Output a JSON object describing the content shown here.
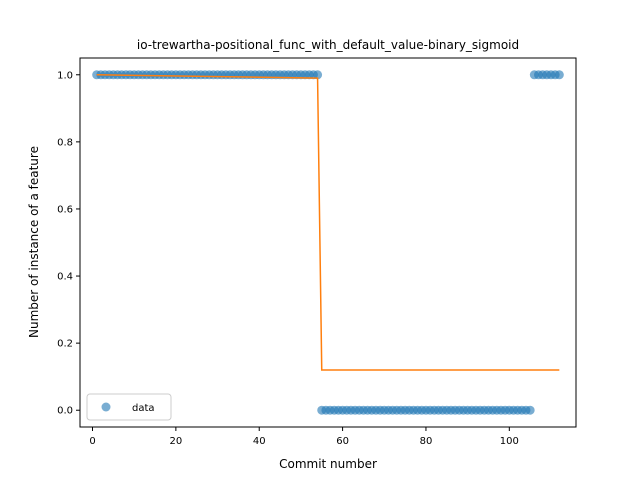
{
  "chart_data": {
    "type": "scatter",
    "title": "io-trewartha-positional_func_with_default_value-binary_sigmoid",
    "xlabel": "Commit number",
    "ylabel": "Number of instance of a feature",
    "xlim": [
      -3,
      116
    ],
    "ylim": [
      -0.05,
      1.05
    ],
    "xticks": [
      0,
      20,
      40,
      60,
      80,
      100
    ],
    "yticks": [
      0.0,
      0.2,
      0.4,
      0.6,
      0.8,
      1.0
    ],
    "grid": false,
    "legend_placement": "lower left",
    "series": [
      {
        "name": "data",
        "kind": "scatter",
        "color": "#1f77b4",
        "points": [
          [
            1,
            1
          ],
          [
            2,
            1
          ],
          [
            3,
            1
          ],
          [
            4,
            1
          ],
          [
            5,
            1
          ],
          [
            6,
            1
          ],
          [
            7,
            1
          ],
          [
            8,
            1
          ],
          [
            9,
            1
          ],
          [
            10,
            1
          ],
          [
            11,
            1
          ],
          [
            12,
            1
          ],
          [
            13,
            1
          ],
          [
            14,
            1
          ],
          [
            15,
            1
          ],
          [
            16,
            1
          ],
          [
            17,
            1
          ],
          [
            18,
            1
          ],
          [
            19,
            1
          ],
          [
            20,
            1
          ],
          [
            21,
            1
          ],
          [
            22,
            1
          ],
          [
            23,
            1
          ],
          [
            24,
            1
          ],
          [
            25,
            1
          ],
          [
            26,
            1
          ],
          [
            27,
            1
          ],
          [
            28,
            1
          ],
          [
            29,
            1
          ],
          [
            30,
            1
          ],
          [
            31,
            1
          ],
          [
            32,
            1
          ],
          [
            33,
            1
          ],
          [
            34,
            1
          ],
          [
            35,
            1
          ],
          [
            36,
            1
          ],
          [
            37,
            1
          ],
          [
            38,
            1
          ],
          [
            39,
            1
          ],
          [
            40,
            1
          ],
          [
            41,
            1
          ],
          [
            42,
            1
          ],
          [
            43,
            1
          ],
          [
            44,
            1
          ],
          [
            45,
            1
          ],
          [
            46,
            1
          ],
          [
            47,
            1
          ],
          [
            48,
            1
          ],
          [
            49,
            1
          ],
          [
            50,
            1
          ],
          [
            51,
            1
          ],
          [
            52,
            1
          ],
          [
            53,
            1
          ],
          [
            54,
            1
          ],
          [
            55,
            0
          ],
          [
            56,
            0
          ],
          [
            57,
            0
          ],
          [
            58,
            0
          ],
          [
            59,
            0
          ],
          [
            60,
            0
          ],
          [
            61,
            0
          ],
          [
            62,
            0
          ],
          [
            63,
            0
          ],
          [
            64,
            0
          ],
          [
            65,
            0
          ],
          [
            66,
            0
          ],
          [
            67,
            0
          ],
          [
            68,
            0
          ],
          [
            69,
            0
          ],
          [
            70,
            0
          ],
          [
            71,
            0
          ],
          [
            72,
            0
          ],
          [
            73,
            0
          ],
          [
            74,
            0
          ],
          [
            75,
            0
          ],
          [
            76,
            0
          ],
          [
            77,
            0
          ],
          [
            78,
            0
          ],
          [
            79,
            0
          ],
          [
            80,
            0
          ],
          [
            81,
            0
          ],
          [
            82,
            0
          ],
          [
            83,
            0
          ],
          [
            84,
            0
          ],
          [
            85,
            0
          ],
          [
            86,
            0
          ],
          [
            87,
            0
          ],
          [
            88,
            0
          ],
          [
            89,
            0
          ],
          [
            90,
            0
          ],
          [
            91,
            0
          ],
          [
            92,
            0
          ],
          [
            93,
            0
          ],
          [
            94,
            0
          ],
          [
            95,
            0
          ],
          [
            96,
            0
          ],
          [
            97,
            0
          ],
          [
            98,
            0
          ],
          [
            99,
            0
          ],
          [
            100,
            0
          ],
          [
            101,
            0
          ],
          [
            102,
            0
          ],
          [
            103,
            0
          ],
          [
            104,
            0
          ],
          [
            105,
            0
          ],
          [
            106,
            1
          ],
          [
            107,
            1
          ],
          [
            108,
            1
          ],
          [
            109,
            1
          ],
          [
            110,
            1
          ],
          [
            111,
            1
          ],
          [
            112,
            1
          ]
        ]
      },
      {
        "kind": "line",
        "color": "#ff7f0e",
        "points": [
          [
            1,
            1
          ],
          [
            54,
            0.99
          ],
          [
            55,
            0.12
          ],
          [
            112,
            0.12
          ]
        ]
      }
    ]
  }
}
